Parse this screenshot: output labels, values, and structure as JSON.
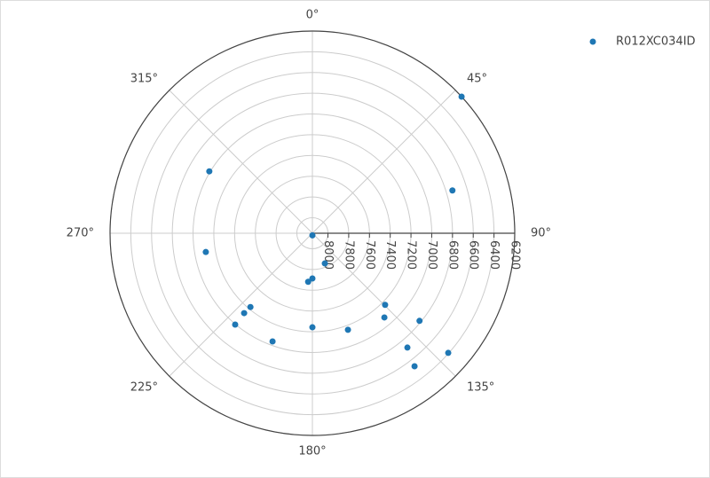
{
  "chart_data": {
    "type": "polar-scatter",
    "series": [
      {
        "name": "R012XC034ID",
        "color": "#1f77b4",
        "theta": [
          47.5,
          73,
          301,
          260,
          180,
          157.6,
          180,
          185,
          220,
          220.5,
          220.2,
          200.2,
          180,
          159.8,
          134.6,
          139.5,
          129.3,
          140.3,
          142.5,
          131.4
        ],
        "r": [
          6200,
          6739,
          6991,
          7107,
          8130,
          7835,
          7714,
          7680,
          7221,
          7137,
          6997,
          7038,
          7243,
          7158,
          7166,
          7082,
          6816,
          6717,
          6533,
          6405
        ]
      }
    ],
    "rlim": [
      8150,
      6200
    ],
    "rticks": [
      8000,
      7800,
      7600,
      7400,
      7200,
      7000,
      6800,
      6600,
      6400,
      6200
    ],
    "thetaticks": [
      {
        "value": 0,
        "label": "0°"
      },
      {
        "value": 45,
        "label": "45°"
      },
      {
        "value": 90,
        "label": "90°"
      },
      {
        "value": 135,
        "label": "135°"
      },
      {
        "value": 180,
        "label": "180°"
      },
      {
        "value": 225,
        "label": "225°"
      },
      {
        "value": 270,
        "label": "270°"
      },
      {
        "value": 315,
        "label": "315°"
      }
    ],
    "direction": "clockwise",
    "legend": "top-right"
  }
}
